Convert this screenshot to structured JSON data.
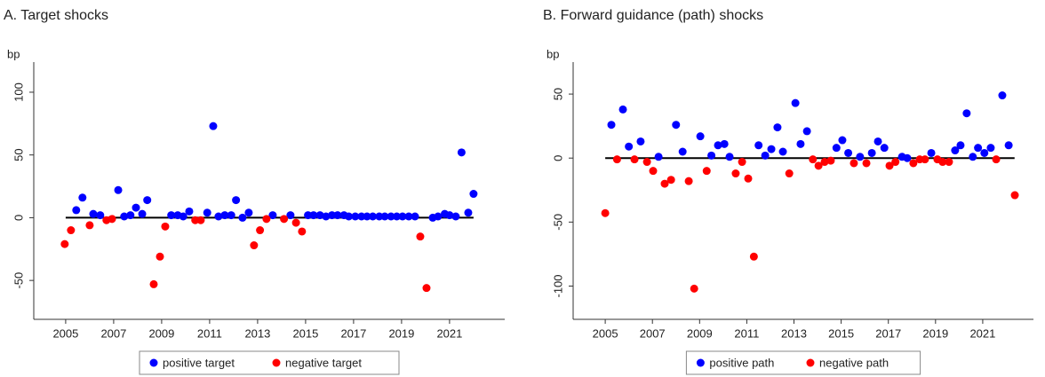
{
  "chart_data": [
    {
      "type": "scatter",
      "title": "A. Target shocks",
      "y_label": "bp",
      "xlim": [
        2003.67,
        2023.3
      ],
      "xticks": [
        2005,
        2007,
        2009,
        2011,
        2013,
        2015,
        2017,
        2019,
        2021
      ],
      "ylim": [
        -81,
        124
      ],
      "yticks": [
        -50,
        0,
        50,
        100
      ],
      "hline": {
        "y": 0,
        "x": [
          2005,
          2022
        ]
      },
      "legend": "bottom",
      "series": [
        {
          "name": "positive target",
          "color": "#0000ff",
          "x": [
            2005.44,
            2005.7,
            2006.15,
            2006.44,
            2007.19,
            2007.44,
            2007.7,
            2007.93,
            2008.19,
            2008.4,
            2009.4,
            2009.67,
            2009.9,
            2010.15,
            2010.9,
            2011.15,
            2011.37,
            2011.63,
            2011.9,
            2012.1,
            2012.37,
            2012.63,
            2013.63,
            2014.37,
            2015.1,
            2015.33,
            2015.6,
            2015.85,
            2016.1,
            2016.33,
            2016.6,
            2016.8,
            2017.07,
            2017.33,
            2017.56,
            2017.8,
            2018.07,
            2018.3,
            2018.56,
            2018.8,
            2019.04,
            2019.3,
            2019.56,
            2020.3,
            2020.52,
            2020.8,
            2021,
            2021.26,
            2021.5,
            2021.78,
            2022
          ],
          "values": [
            6,
            16,
            3,
            2,
            22,
            1,
            2,
            8,
            3,
            14,
            2,
            2,
            1,
            5,
            4,
            73,
            1,
            2,
            2,
            14,
            0,
            4,
            2,
            2,
            2,
            2,
            2,
            1,
            2,
            2,
            2,
            1,
            1,
            1,
            1,
            1,
            1,
            1,
            1,
            1,
            1,
            1,
            1,
            0,
            1,
            3,
            2,
            1,
            52,
            4,
            19
          ]
        },
        {
          "name": "negative target",
          "color": "#ff0000",
          "x": [
            2004.96,
            2005.22,
            2006,
            2006.7,
            2006.93,
            2008.67,
            2008.93,
            2009.15,
            2010.4,
            2010.63,
            2012.85,
            2013.1,
            2013.37,
            2014.1,
            2014.6,
            2014.85,
            2019.78,
            2020.04
          ],
          "values": [
            -21,
            -10,
            -6,
            -2,
            -1,
            -53,
            -31,
            -7,
            -2,
            -2,
            -22,
            -10,
            -1,
            -1,
            -4,
            -11,
            -15,
            -56
          ]
        }
      ]
    },
    {
      "type": "scatter",
      "title": "B. Forward guidance (path) shocks",
      "y_label": "bp",
      "xlim": [
        2003.64,
        2023.15
      ],
      "xticks": [
        2005,
        2007,
        2009,
        2011,
        2013,
        2015,
        2017,
        2019,
        2021
      ],
      "ylim": [
        -126,
        75
      ],
      "yticks": [
        -100,
        -50,
        0,
        50
      ],
      "hline": {
        "y": 0,
        "x": [
          2005,
          2022.35
        ]
      },
      "legend": "bottom",
      "series": [
        {
          "name": "positive path",
          "color": "#0000ff",
          "x": [
            2005.26,
            2005.75,
            2006,
            2006.5,
            2007.26,
            2008,
            2008.28,
            2009.03,
            2009.5,
            2009.78,
            2010.05,
            2010.27,
            2011.5,
            2011.78,
            2012.04,
            2012.3,
            2012.53,
            2013.06,
            2013.28,
            2013.55,
            2014.8,
            2015.05,
            2015.3,
            2015.8,
            2016.3,
            2016.56,
            2016.83,
            2017.58,
            2017.8,
            2018.82,
            2019.83,
            2020.06,
            2020.32,
            2020.58,
            2020.8,
            2021.07,
            2021.34,
            2021.83,
            2022.1
          ],
          "values": [
            26,
            38,
            9,
            13,
            1,
            26,
            5,
            17,
            2,
            10,
            11,
            1,
            10,
            2,
            7,
            24,
            5,
            43,
            11,
            21,
            8,
            14,
            4,
            1,
            4,
            13,
            8,
            1,
            0,
            4,
            6,
            10,
            35,
            1,
            8,
            4,
            8,
            49,
            10
          ]
        },
        {
          "name": "negative path",
          "color": "#ff0000",
          "x": [
            2005,
            2005.5,
            2006.24,
            2006.77,
            2007.03,
            2007.52,
            2007.79,
            2008.54,
            2008.77,
            2009.3,
            2010.53,
            2010.8,
            2011.06,
            2011.3,
            2012.8,
            2013.8,
            2014.04,
            2014.3,
            2014.56,
            2015.54,
            2016.07,
            2017.05,
            2017.3,
            2018.06,
            2018.33,
            2018.55,
            2019.08,
            2019.3,
            2019.57,
            2021.57,
            2022.36
          ],
          "values": [
            -43,
            -1,
            -1,
            -3,
            -10,
            -20,
            -17,
            -18,
            -102,
            -10,
            -12,
            -3,
            -16,
            -77,
            -12,
            -1,
            -6,
            -3,
            -2,
            -4,
            -4,
            -6,
            -3,
            -4,
            -1,
            -1,
            -1,
            -3,
            -3,
            -1,
            -29
          ]
        }
      ]
    }
  ]
}
